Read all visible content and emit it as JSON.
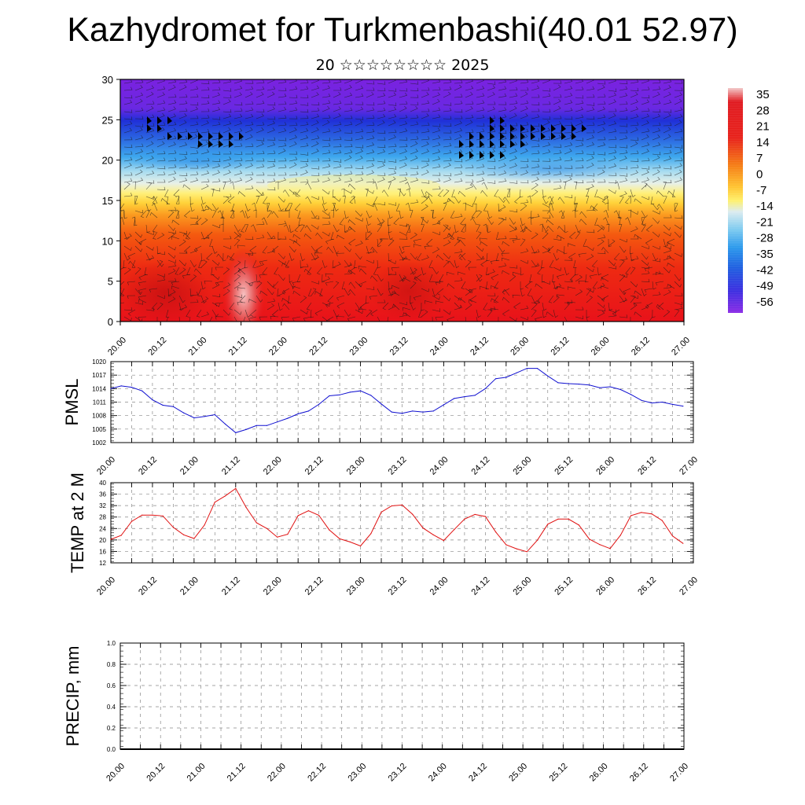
{
  "header": {
    "title": "Kazhydromet for Turkmenbashi(40.01 52.97)",
    "subtitle": "20 ☆☆☆☆☆☆☆☆ 2025"
  },
  "chart_data": [
    {
      "type": "heatmap",
      "name": "upper-air-section",
      "x_tick_labels": [
        "20.00",
        "20.12",
        "21.00",
        "21.12",
        "22.00",
        "22.12",
        "23.00",
        "23.12",
        "24.00",
        "24.12",
        "25.00",
        "25.12",
        "26.00",
        "26.12",
        "27.00"
      ],
      "y_tick_labels": [
        "0",
        "5",
        "10",
        "15",
        "20",
        "25",
        "30"
      ],
      "ylim": [
        0,
        30
      ],
      "colorbar_labels": [
        "35",
        "28",
        "21",
        "14",
        "7",
        "0",
        "-7",
        "-14",
        "-21",
        "-28",
        "-35",
        "-42",
        "-49",
        "-56"
      ],
      "colorbar_range": [
        -60,
        38
      ],
      "overlay": "wind barbs",
      "colors": {
        "cold": "#7a22e0",
        "mid": "#ffe84a",
        "warm": "#e8121a",
        "hot": "#f2b0b0"
      }
    },
    {
      "type": "line",
      "name": "pmsl",
      "ylabel": "PMSL",
      "ylim": [
        1002,
        1020
      ],
      "y_tick_labels": [
        "1020",
        "1017",
        "1014",
        "1011",
        "1008",
        "1005",
        "1002"
      ],
      "x_tick_labels": [
        "20.00",
        "20.12",
        "21.00",
        "21.12",
        "22.00",
        "22.12",
        "23.00",
        "23.12",
        "24.00",
        "24.12",
        "25.00",
        "25.12",
        "26.00",
        "26.12",
        "27.00"
      ],
      "color": "#1010d0",
      "series": [
        {
          "x": [
            0,
            3,
            6,
            9,
            12,
            15,
            18,
            21,
            24,
            27,
            30,
            33,
            36,
            39,
            42,
            45,
            48,
            51,
            54,
            57,
            60,
            63,
            66,
            69,
            72,
            75,
            78,
            81,
            84,
            87,
            90,
            93,
            96,
            99,
            102,
            105,
            108,
            111,
            114,
            117,
            120,
            123,
            126,
            129,
            132,
            135,
            138,
            141,
            144,
            147,
            150,
            153,
            156,
            159,
            162,
            165
          ],
          "values": [
            1014.0,
            1014.6,
            1014.3,
            1013.5,
            1011.5,
            1010.3,
            1010.0,
            1008.6,
            1007.5,
            1007.8,
            1008.2,
            1006.1,
            1004.2,
            1004.9,
            1005.8,
            1005.8,
            1006.6,
            1007.4,
            1008.4,
            1009.0,
            1010.5,
            1012.4,
            1012.6,
            1013.2,
            1013.5,
            1012.5,
            1010.6,
            1008.8,
            1008.5,
            1009.0,
            1008.8,
            1009.0,
            1010.4,
            1011.8,
            1012.2,
            1012.5,
            1014.0,
            1016.2,
            1016.5,
            1017.5,
            1018.5,
            1018.5,
            1016.8,
            1015.3,
            1015.1,
            1015.0,
            1014.8,
            1014.2,
            1014.4,
            1013.8,
            1012.7,
            1011.4,
            1010.8,
            1011.0,
            1010.5,
            1010.1
          ]
        }
      ]
    },
    {
      "type": "line",
      "name": "temp-2m",
      "ylabel": "TEMP at 2 M",
      "ylim": [
        12,
        40
      ],
      "y_tick_labels": [
        "40",
        "36",
        "32",
        "28",
        "24",
        "20",
        "16",
        "12"
      ],
      "x_tick_labels": [
        "20.00",
        "20.12",
        "21.00",
        "21.12",
        "22.00",
        "22.12",
        "23.00",
        "23.12",
        "24.00",
        "24.12",
        "25.00",
        "25.12",
        "26.00",
        "26.12",
        "27.00"
      ],
      "color": "#e01010",
      "series": [
        {
          "x": [
            0,
            3,
            6,
            9,
            12,
            15,
            18,
            21,
            24,
            27,
            30,
            33,
            36,
            39,
            42,
            45,
            48,
            51,
            54,
            57,
            60,
            63,
            66,
            69,
            72,
            75,
            78,
            81,
            84,
            87,
            90,
            93,
            96,
            99,
            102,
            105,
            108,
            111,
            114,
            117,
            120,
            123,
            126,
            129,
            132,
            135,
            138,
            141,
            144,
            147,
            150,
            153,
            156,
            159,
            162,
            165
          ],
          "values": [
            20.2,
            21.6,
            26.5,
            28.7,
            28.7,
            28.4,
            24.4,
            21.8,
            20.5,
            25.2,
            33.2,
            35.4,
            38.0,
            31.4,
            26.0,
            24.0,
            21.0,
            22.0,
            28.5,
            30.2,
            28.6,
            23.5,
            20.4,
            19.3,
            17.9,
            22.2,
            29.7,
            31.9,
            32.2,
            29.0,
            24.2,
            21.8,
            19.8,
            23.6,
            27.3,
            28.9,
            28.2,
            22.8,
            18.3,
            16.9,
            15.9,
            19.9,
            25.5,
            27.3,
            27.3,
            25.2,
            20.3,
            18.4,
            17.0,
            21.7,
            28.5,
            29.6,
            29.1,
            26.8,
            21.4,
            18.8
          ]
        }
      ]
    },
    {
      "type": "line",
      "name": "precip",
      "ylabel": "PRECIP, mm",
      "ylim": [
        0,
        1
      ],
      "y_tick_labels": [
        "1.0",
        "0.8",
        "0.6",
        "0.4",
        "0.2",
        "0.0"
      ],
      "x_tick_labels": [
        "20.00",
        "20.12",
        "21.00",
        "21.12",
        "22.00",
        "22.12",
        "23.00",
        "23.12",
        "24.00",
        "24.12",
        "25.00",
        "25.12",
        "26.00",
        "26.12",
        "27.00"
      ],
      "color": "#000000",
      "series": [
        {
          "x": [
            0,
            168
          ],
          "values": [
            0,
            0
          ]
        }
      ]
    }
  ]
}
